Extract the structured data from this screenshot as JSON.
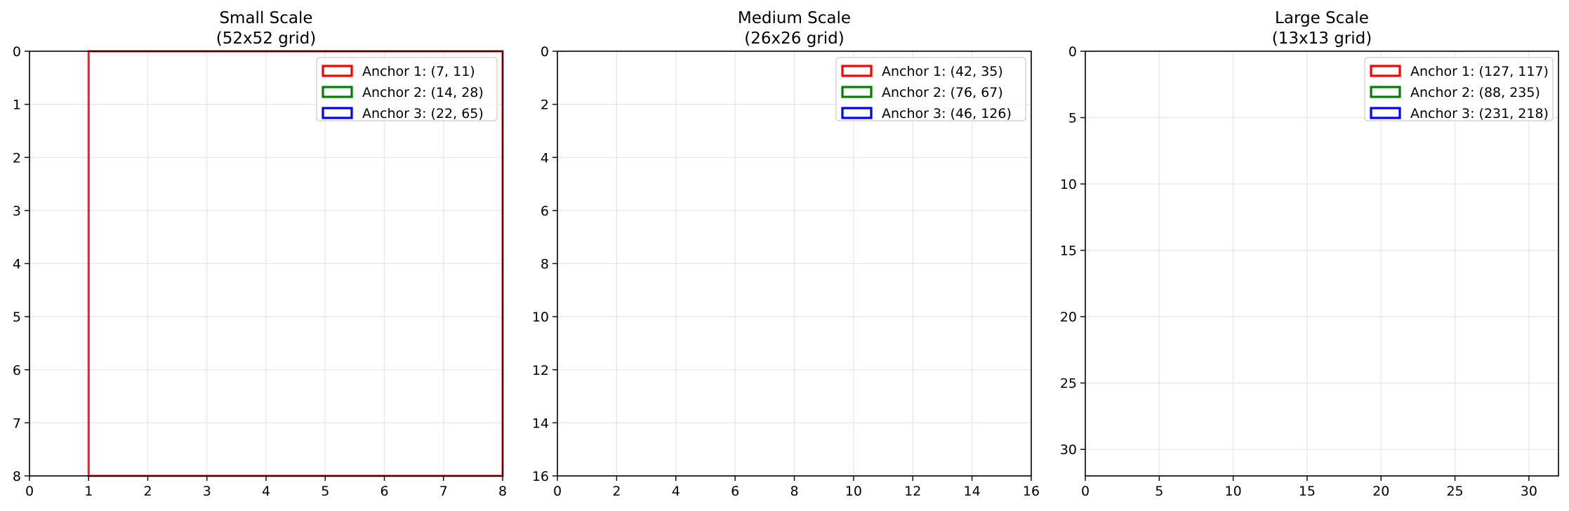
{
  "colors": {
    "red": "#ff0000",
    "green": "#008000",
    "blue": "#0000ff",
    "grid": "#e6e6e6",
    "axis": "#000000"
  },
  "chart_data": [
    {
      "type": "line",
      "title": "Small Scale",
      "subtitle": "(52x52 grid)",
      "xlim": [
        0,
        8
      ],
      "ylim": [
        8,
        0
      ],
      "y_inverted": true,
      "xticks": [
        0,
        1,
        2,
        3,
        4,
        5,
        6,
        7,
        8
      ],
      "yticks": [
        0,
        1,
        2,
        3,
        4,
        5,
        6,
        7,
        8
      ],
      "grid": true,
      "legend_position": "top-right",
      "series": [
        {
          "name": "Anchor 1: (7, 11)",
          "color": "#ff0000",
          "box": {
            "x0": 1,
            "y0": 0,
            "x1": 8,
            "y1": 8
          }
        },
        {
          "name": "Anchor 2: (14, 28)",
          "color": "#008000",
          "box": null
        },
        {
          "name": "Anchor 3: (22, 65)",
          "color": "#0000ff",
          "box": null
        }
      ]
    },
    {
      "type": "line",
      "title": "Medium Scale",
      "subtitle": "(26x26 grid)",
      "xlim": [
        0,
        16
      ],
      "ylim": [
        16,
        0
      ],
      "y_inverted": true,
      "xticks": [
        0,
        2,
        4,
        6,
        8,
        10,
        12,
        14,
        16
      ],
      "yticks": [
        0,
        2,
        4,
        6,
        8,
        10,
        12,
        14,
        16
      ],
      "grid": true,
      "legend_position": "top-right",
      "series": [
        {
          "name": "Anchor 1: (42, 35)",
          "color": "#ff0000",
          "box": null
        },
        {
          "name": "Anchor 2: (76, 67)",
          "color": "#008000",
          "box": null
        },
        {
          "name": "Anchor 3: (46, 126)",
          "color": "#0000ff",
          "box": null
        }
      ]
    },
    {
      "type": "line",
      "title": "Large Scale",
      "subtitle": "(13x13 grid)",
      "xlim": [
        0,
        32
      ],
      "ylim": [
        32,
        0
      ],
      "y_inverted": true,
      "xticks": [
        0,
        5,
        10,
        15,
        20,
        25,
        30
      ],
      "yticks": [
        0,
        5,
        10,
        15,
        20,
        25,
        30
      ],
      "grid": true,
      "legend_position": "top-right",
      "series": [
        {
          "name": "Anchor 1: (127, 117)",
          "color": "#ff0000",
          "box": null
        },
        {
          "name": "Anchor 2: (88, 235)",
          "color": "#008000",
          "box": null
        },
        {
          "name": "Anchor 3: (231, 218)",
          "color": "#0000ff",
          "box": null
        }
      ]
    }
  ]
}
